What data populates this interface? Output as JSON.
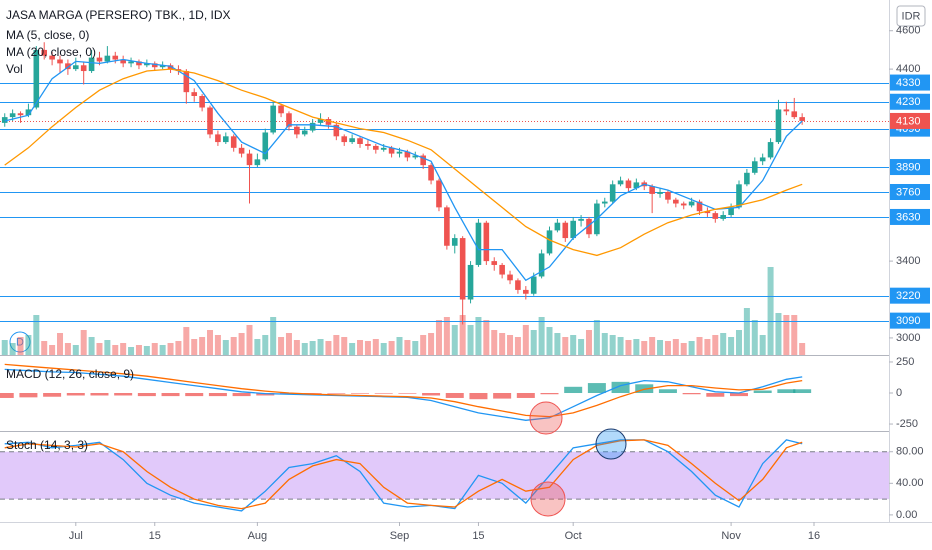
{
  "badge": "D",
  "chart_data": [
    {
      "type": "candlestick",
      "title": "JASA MARGA (PERSERO) TBK., 1D, IDX",
      "currency": "IDR",
      "up_color": "#26a69a",
      "down_color": "#ef5350",
      "xlim": [
        -0.6,
        112
      ],
      "xticks": [
        {
          "value": 9,
          "label": "Jul"
        },
        {
          "value": 19,
          "label": "15"
        },
        {
          "value": 32,
          "label": "Aug"
        },
        {
          "value": 50,
          "label": "Sep"
        },
        {
          "value": 60,
          "label": "15"
        },
        {
          "value": 72,
          "label": "Oct"
        },
        {
          "value": 92,
          "label": "Nov"
        },
        {
          "value": 102.5,
          "label": "16"
        }
      ],
      "ylim": [
        2911,
        4760
      ],
      "yticks": [
        3000,
        3400,
        4400,
        4600
      ],
      "ohlc": [
        [
          4120,
          4170,
          4100,
          4150
        ],
        [
          4150,
          4190,
          4130,
          4170
        ],
        [
          4170,
          4180,
          4120,
          4160
        ],
        [
          4160,
          4220,
          4150,
          4190
        ],
        [
          4200,
          4520,
          4190,
          4500
        ],
        [
          4500,
          4540,
          4450,
          4470
        ],
        [
          4470,
          4490,
          4420,
          4450
        ],
        [
          4450,
          4470,
          4380,
          4430
        ],
        [
          4430,
          4450,
          4370,
          4400
        ],
        [
          4400,
          4460,
          4390,
          4420
        ],
        [
          4420,
          4440,
          4320,
          4390
        ],
        [
          4390,
          4500,
          4380,
          4460
        ],
        [
          4460,
          4490,
          4420,
          4440
        ],
        [
          4440,
          4520,
          4430,
          4470
        ],
        [
          4470,
          4490,
          4430,
          4450
        ],
        [
          4450,
          4470,
          4410,
          4430
        ],
        [
          4430,
          4460,
          4410,
          4440
        ],
        [
          4440,
          4450,
          4400,
          4420
        ],
        [
          4420,
          4450,
          4410,
          4430
        ],
        [
          4430,
          4440,
          4390,
          4410
        ],
        [
          4410,
          4440,
          4400,
          4420
        ],
        [
          4420,
          4430,
          4380,
          4400
        ],
        [
          4400,
          4420,
          4370,
          4390
        ],
        [
          4390,
          4400,
          4220,
          4280
        ],
        [
          4280,
          4300,
          4230,
          4260
        ],
        [
          4260,
          4270,
          4180,
          4200
        ],
        [
          4200,
          4210,
          4040,
          4060
        ],
        [
          4060,
          4080,
          4000,
          4020
        ],
        [
          4020,
          4070,
          4010,
          4050
        ],
        [
          4050,
          4060,
          3970,
          3990
        ],
        [
          3990,
          4010,
          3940,
          3960
        ],
        [
          3960,
          3980,
          3700,
          3900
        ],
        [
          3900,
          3960,
          3890,
          3930
        ],
        [
          3930,
          4090,
          3920,
          4070
        ],
        [
          4070,
          4230,
          4060,
          4210
        ],
        [
          4210,
          4220,
          4150,
          4170
        ],
        [
          4170,
          4180,
          4080,
          4100
        ],
        [
          4100,
          4110,
          4040,
          4060
        ],
        [
          4060,
          4100,
          4050,
          4080
        ],
        [
          4080,
          4140,
          4070,
          4120
        ],
        [
          4120,
          4170,
          4110,
          4140
        ],
        [
          4140,
          4150,
          4090,
          4110
        ],
        [
          4110,
          4120,
          4030,
          4050
        ],
        [
          4050,
          4060,
          4000,
          4020
        ],
        [
          4020,
          4060,
          4010,
          4040
        ],
        [
          4040,
          4050,
          3990,
          4010
        ],
        [
          4010,
          4030,
          3980,
          4000
        ],
        [
          4000,
          4010,
          3960,
          3980
        ],
        [
          3980,
          4010,
          3970,
          3990
        ],
        [
          3990,
          4000,
          3940,
          3960
        ],
        [
          3960,
          3990,
          3940,
          3970
        ],
        [
          3970,
          3980,
          3920,
          3940
        ],
        [
          3940,
          3970,
          3930,
          3950
        ],
        [
          3950,
          3960,
          3880,
          3900
        ],
        [
          3900,
          3910,
          3800,
          3820
        ],
        [
          3820,
          3830,
          3660,
          3680
        ],
        [
          3680,
          3690,
          3460,
          3480
        ],
        [
          3480,
          3540,
          3440,
          3520
        ],
        [
          3520,
          3530,
          3070,
          3200
        ],
        [
          3200,
          3400,
          3180,
          3380
        ],
        [
          3380,
          3620,
          3370,
          3600
        ],
        [
          3600,
          3610,
          3380,
          3400
        ],
        [
          3400,
          3420,
          3350,
          3380
        ],
        [
          3380,
          3390,
          3310,
          3330
        ],
        [
          3330,
          3350,
          3280,
          3300
        ],
        [
          3300,
          3310,
          3230,
          3250
        ],
        [
          3250,
          3270,
          3200,
          3230
        ],
        [
          3230,
          3340,
          3220,
          3320
        ],
        [
          3320,
          3460,
          3310,
          3440
        ],
        [
          3440,
          3580,
          3430,
          3560
        ],
        [
          3560,
          3620,
          3550,
          3600
        ],
        [
          3600,
          3610,
          3500,
          3520
        ],
        [
          3520,
          3630,
          3510,
          3610
        ],
        [
          3610,
          3640,
          3580,
          3620
        ],
        [
          3620,
          3630,
          3520,
          3540
        ],
        [
          3540,
          3720,
          3530,
          3700
        ],
        [
          3700,
          3730,
          3680,
          3710
        ],
        [
          3710,
          3820,
          3700,
          3800
        ],
        [
          3800,
          3840,
          3790,
          3820
        ],
        [
          3820,
          3830,
          3760,
          3780
        ],
        [
          3780,
          3830,
          3770,
          3810
        ],
        [
          3810,
          3820,
          3770,
          3790
        ],
        [
          3790,
          3800,
          3650,
          3750
        ],
        [
          3750,
          3780,
          3730,
          3760
        ],
        [
          3760,
          3770,
          3700,
          3720
        ],
        [
          3720,
          3730,
          3680,
          3700
        ],
        [
          3700,
          3710,
          3670,
          3690
        ],
        [
          3690,
          3730,
          3680,
          3710
        ],
        [
          3710,
          3720,
          3640,
          3660
        ],
        [
          3660,
          3680,
          3630,
          3650
        ],
        [
          3650,
          3660,
          3600,
          3620
        ],
        [
          3620,
          3660,
          3610,
          3640
        ],
        [
          3640,
          3700,
          3630,
          3680
        ],
        [
          3680,
          3820,
          3670,
          3800
        ],
        [
          3800,
          3880,
          3790,
          3860
        ],
        [
          3860,
          3940,
          3850,
          3920
        ],
        [
          3920,
          3960,
          3900,
          3940
        ],
        [
          3940,
          4040,
          3930,
          4020
        ],
        [
          4020,
          4240,
          4010,
          4190
        ],
        [
          4190,
          4230,
          4160,
          4180
        ],
        [
          4180,
          4250,
          4140,
          4150
        ],
        [
          4150,
          4170,
          4110,
          4130
        ]
      ],
      "ma_series": [
        {
          "name": "MA (5, close, 0)",
          "color": "#2196f3",
          "x": [
            0,
            3,
            6,
            9,
            12,
            15,
            18,
            21,
            24,
            27,
            30,
            33,
            36,
            39,
            42,
            45,
            48,
            51,
            54,
            57,
            60,
            63,
            66,
            69,
            72,
            75,
            78,
            81,
            84,
            87,
            90,
            93,
            96,
            99,
            101
          ],
          "values": [
            4130,
            4160,
            4350,
            4440,
            4430,
            4450,
            4430,
            4415,
            4340,
            4170,
            4020,
            3960,
            4110,
            4110,
            4100,
            4050,
            4000,
            3970,
            3920,
            3680,
            3460,
            3460,
            3300,
            3370,
            3520,
            3620,
            3740,
            3800,
            3770,
            3720,
            3670,
            3680,
            3820,
            4050,
            4130
          ]
        },
        {
          "name": "MA (20, close, 0)",
          "color": "#ff9800",
          "x": [
            0,
            3,
            6,
            9,
            12,
            15,
            18,
            21,
            24,
            27,
            30,
            33,
            36,
            39,
            42,
            45,
            48,
            51,
            54,
            57,
            60,
            63,
            66,
            69,
            72,
            75,
            78,
            81,
            84,
            87,
            90,
            93,
            96,
            99,
            101
          ],
          "values": [
            3900,
            3990,
            4100,
            4200,
            4290,
            4350,
            4390,
            4400,
            4380,
            4340,
            4290,
            4250,
            4200,
            4150,
            4120,
            4090,
            4070,
            4030,
            3980,
            3880,
            3780,
            3680,
            3580,
            3510,
            3460,
            3430,
            3470,
            3540,
            3600,
            3640,
            3670,
            3690,
            3720,
            3770,
            3800
          ]
        }
      ],
      "volume": {
        "name": "Vol",
        "ylim": [
          0,
          100
        ],
        "values": [
          15,
          12,
          18,
          20,
          40,
          14,
          10,
          22,
          12,
          10,
          25,
          18,
          12,
          15,
          10,
          12,
          8,
          10,
          9,
          12,
          10,
          12,
          14,
          28,
          16,
          18,
          25,
          20,
          15,
          18,
          22,
          30,
          16,
          20,
          38,
          18,
          22,
          15,
          12,
          14,
          16,
          14,
          20,
          18,
          12,
          15,
          14,
          16,
          12,
          14,
          18,
          15,
          14,
          20,
          22,
          35,
          38,
          30,
          40,
          30,
          38,
          35,
          25,
          22,
          20,
          18,
          30,
          25,
          38,
          28,
          22,
          18,
          20,
          16,
          25,
          35,
          22,
          20,
          18,
          15,
          16,
          14,
          18,
          15,
          14,
          16,
          12,
          14,
          18,
          16,
          20,
          22,
          18,
          25,
          47,
          35,
          20,
          88,
          42,
          40,
          40,
          12
        ]
      },
      "levels": [
        4330,
        4230,
        4090,
        3890,
        3760,
        3630,
        3220,
        3090
      ],
      "level_color": "#2196f3",
      "last_price": 4130,
      "last_price_color": "#ef5350"
    },
    {
      "type": "macd",
      "title": "MACD (12, 26, close, 9)",
      "x": [
        0,
        3,
        6,
        9,
        12,
        15,
        18,
        21,
        24,
        27,
        30,
        33,
        36,
        39,
        42,
        45,
        48,
        51,
        54,
        57,
        60,
        63,
        66,
        69,
        72,
        75,
        78,
        81,
        84,
        87,
        90,
        93,
        96,
        99,
        101
      ],
      "macd_values": [
        190,
        180,
        170,
        165,
        150,
        135,
        110,
        85,
        60,
        35,
        10,
        -5,
        -10,
        -15,
        -20,
        -25,
        -30,
        -35,
        -60,
        -110,
        -160,
        -190,
        -220,
        -200,
        -110,
        -20,
        60,
        100,
        90,
        50,
        10,
        0,
        50,
        110,
        130
      ],
      "signal_values": [
        230,
        215,
        200,
        185,
        170,
        155,
        135,
        110,
        85,
        60,
        35,
        15,
        0,
        -10,
        -15,
        -20,
        -25,
        -30,
        -40,
        -70,
        -110,
        -145,
        -180,
        -190,
        -160,
        -100,
        -30,
        30,
        60,
        60,
        40,
        25,
        30,
        80,
        100
      ],
      "histogram_values": [
        -40,
        -35,
        -30,
        -20,
        -20,
        -20,
        -25,
        -25,
        -25,
        -25,
        -25,
        -20,
        -10,
        -5,
        -5,
        -5,
        -5,
        -5,
        -20,
        -40,
        -50,
        -45,
        -40,
        -10,
        50,
        80,
        90,
        70,
        30,
        -10,
        -30,
        -25,
        20,
        30,
        30
      ],
      "macd_color": "#2196f3",
      "signal_color": "#ff6d00",
      "positive_color": "#26a69a",
      "negative_color": "#ef5350",
      "ylim": [
        -298,
        290
      ],
      "yticks": [
        250,
        0,
        -250
      ]
    },
    {
      "type": "stochastic",
      "title": "Stoch (14, 3, 3)",
      "x": [
        0,
        3,
        6,
        9,
        12,
        15,
        18,
        21,
        24,
        27,
        30,
        33,
        36,
        39,
        42,
        45,
        48,
        51,
        54,
        57,
        60,
        63,
        66,
        69,
        72,
        75,
        78,
        81,
        84,
        87,
        90,
        93,
        96,
        99,
        101
      ],
      "k_values": [
        90,
        92,
        85,
        88,
        92,
        70,
        40,
        25,
        15,
        10,
        5,
        30,
        60,
        65,
        75,
        55,
        15,
        10,
        12,
        8,
        50,
        40,
        15,
        50,
        85,
        90,
        95,
        95,
        80,
        55,
        25,
        10,
        65,
        95,
        90
      ],
      "d_values": [
        85,
        90,
        88,
        86,
        90,
        80,
        55,
        35,
        20,
        12,
        8,
        15,
        45,
        62,
        70,
        65,
        35,
        15,
        12,
        10,
        30,
        45,
        30,
        35,
        70,
        88,
        94,
        95,
        88,
        65,
        40,
        18,
        45,
        85,
        92
      ],
      "k_color": "#2196f3",
      "d_color": "#ff6d00",
      "band": [
        20,
        80
      ],
      "band_color": "#c99cf5",
      "ylim": [
        -9,
        105
      ],
      "yticks": [
        {
          "value": 80,
          "label": "80.00"
        },
        {
          "value": 40,
          "label": "40.00"
        },
        {
          "value": 0,
          "label": "0.00"
        }
      ]
    }
  ]
}
